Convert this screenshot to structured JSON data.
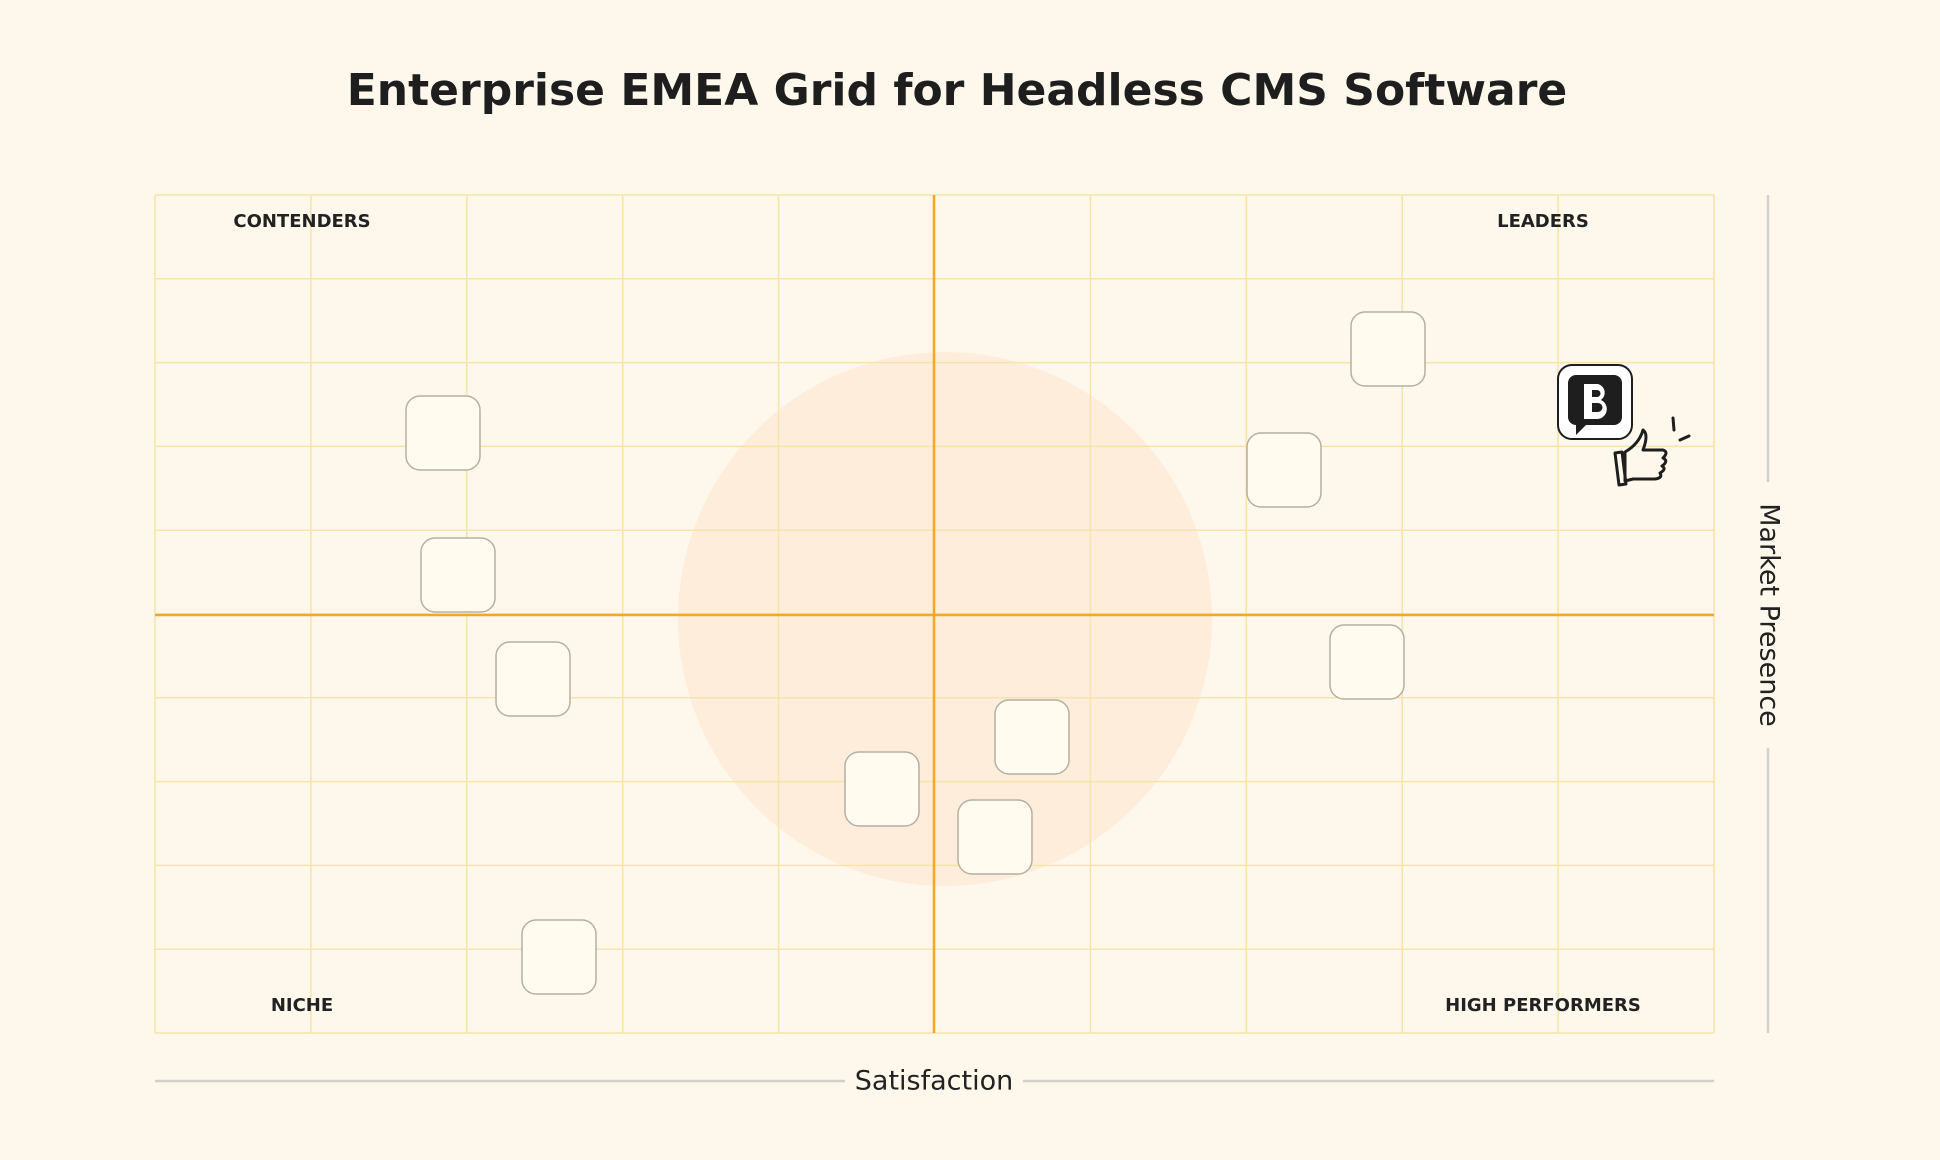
{
  "title": "Enterprise EMEA Grid for Headless CMS Software",
  "quadrants": {
    "top_left": "CONTENDERS",
    "top_right": "LEADERS",
    "bottom_left": "NICHE",
    "bottom_right": "HIGH PERFORMERS"
  },
  "x_axis_label": "Satisfaction",
  "y_axis_label": "Market Presence"
}
